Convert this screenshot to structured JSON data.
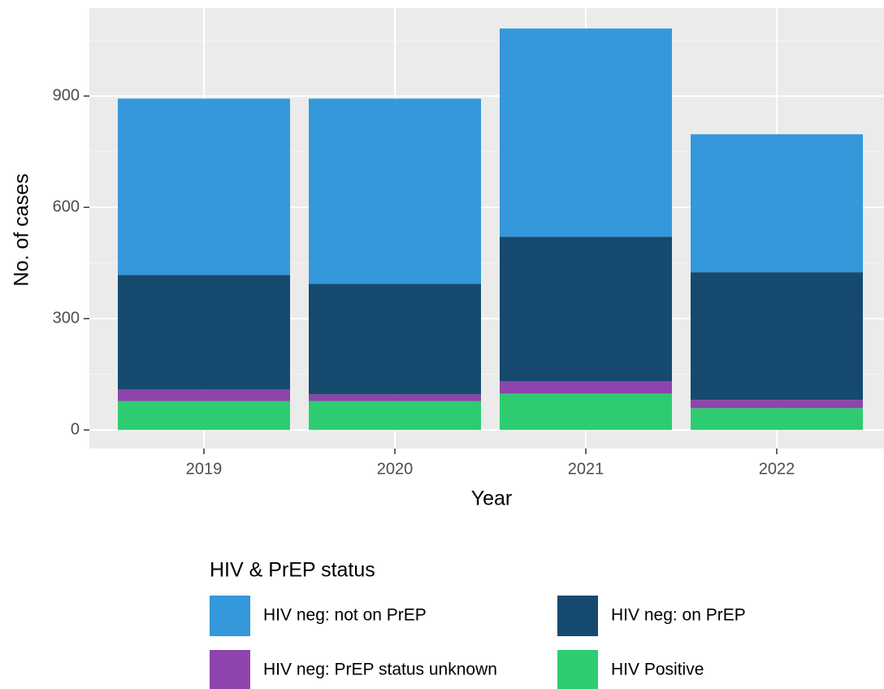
{
  "chart_data": {
    "type": "stacked_bar",
    "x_label": "Year",
    "y_label": "No. of cases",
    "categories": [
      "2019",
      "2020",
      "2021",
      "2022"
    ],
    "series": [
      {
        "name": "HIV neg: not on PrEP",
        "color": "#3498db",
        "values": [
          475,
          499,
          561,
          372
        ]
      },
      {
        "name": "HIV neg: on PrEP",
        "color": "#154a6e",
        "values": [
          309,
          298,
          390,
          344
        ]
      },
      {
        "name": "HIV neg: PrEP status unknown",
        "color": "#8e44ad",
        "values": [
          31,
          18,
          33,
          22
        ]
      },
      {
        "name": "HIV Positive",
        "color": "#2ecc71",
        "values": [
          78,
          78,
          98,
          59
        ]
      }
    ],
    "stack_order": "bottom-up from last series",
    "ylim": [
      -50,
      1137
    ],
    "yticks": [
      0,
      300,
      600,
      900
    ],
    "y_minor_ticks": [
      150,
      450,
      750,
      1050
    ],
    "grid": true,
    "legend_title": "HIV & PrEP status",
    "legend_position": "bottom"
  }
}
